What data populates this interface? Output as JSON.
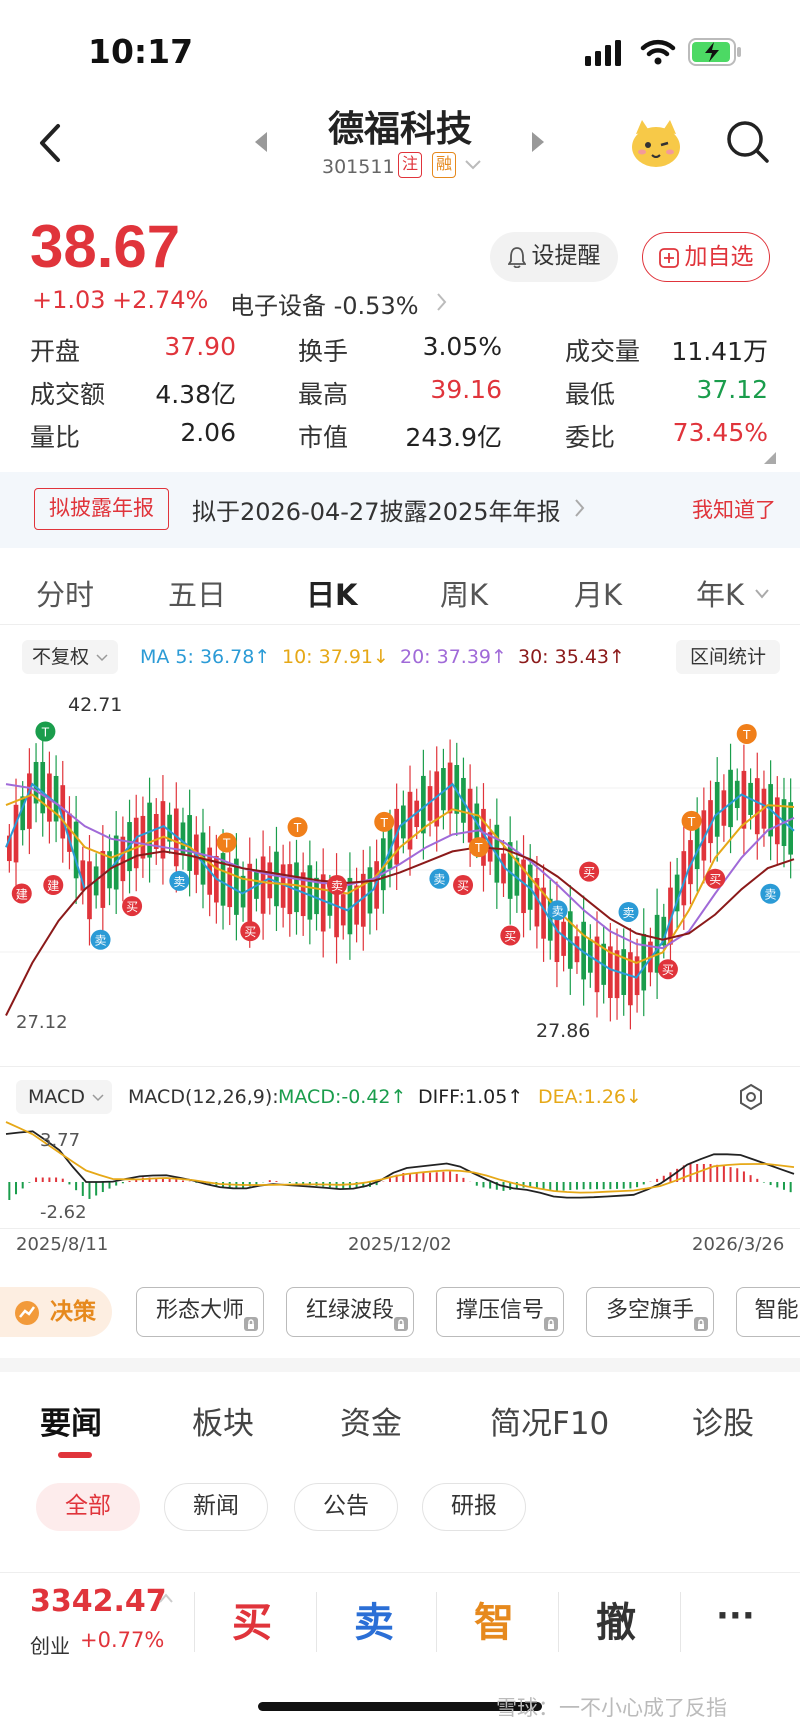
{
  "status_bar": {
    "time": "10:17"
  },
  "header": {
    "title": "德福科技",
    "code": "301511",
    "tag1": "注",
    "tag2": "融"
  },
  "quote": {
    "price": "38.67",
    "change": "+1.03",
    "change_pct": "+2.74%",
    "sector": "电子设备 -0.53%",
    "remind_label": "设提醒",
    "add_label": "加自选"
  },
  "stats": [
    {
      "label": "开盘",
      "value": "37.90",
      "color": "#e0343b"
    },
    {
      "label": "换手",
      "value": "3.05%",
      "color": "#222"
    },
    {
      "label": "成交量",
      "value": "11.41万",
      "color": "#222"
    },
    {
      "label": "成交额",
      "value": "4.38亿",
      "color": "#222"
    },
    {
      "label": "最高",
      "value": "39.16",
      "color": "#e0343b"
    },
    {
      "label": "最低",
      "value": "37.12",
      "color": "#1a9d4c"
    },
    {
      "label": "量比",
      "value": "2.06",
      "color": "#222"
    },
    {
      "label": "市值",
      "value": "243.9亿",
      "color": "#222"
    },
    {
      "label": "委比",
      "value": "73.45%",
      "color": "#e0343b"
    }
  ],
  "notice": {
    "badge": "拟披露年报",
    "text": "拟于2026-04-27披露2025年年报",
    "action": "我知道了"
  },
  "period_tabs": [
    "分时",
    "五日",
    "日K",
    "周K",
    "月K",
    "年K"
  ],
  "active_tab": "日K",
  "chart_controls": {
    "adjust": "不复权",
    "range_stats": "区间统计"
  },
  "ma_legend": {
    "ma5": "MA 5: 36.78↑",
    "ma10": "10: 37.91↓",
    "ma20": "20: 37.39↑",
    "ma30": "30: 35.43↑"
  },
  "colors": {
    "up": "#e0343b",
    "down": "#1a9d4c",
    "ma5": "#2b9bd6",
    "ma10": "#e6a817",
    "ma20": "#a06ad8",
    "ma30": "#8b1a1a",
    "accent": "#e0343b"
  },
  "chart_data": {
    "type": "line",
    "title": "",
    "ylim": [
      27.12,
      42.71
    ],
    "high_label": "42.71",
    "low_label": "27.86",
    "axis_min_label": "27.12",
    "x_labels": [
      "2025/8/11",
      "2025/12/02",
      "2026/3/26"
    ],
    "series": [
      {
        "name": "MA 5",
        "values": [
          36,
          39,
          38,
          34,
          35,
          36.5,
          37,
          36,
          34.5,
          33.8,
          34.5,
          34,
          33.5,
          33,
          34,
          37,
          38,
          39,
          37,
          35,
          34,
          32,
          31,
          30.2,
          29.8,
          31.5,
          35,
          37.5,
          38.5,
          37.9,
          36.78
        ]
      },
      {
        "name": "10",
        "values": [
          38,
          38.5,
          37.5,
          36,
          35.5,
          36,
          36.5,
          36,
          35,
          34.5,
          34.3,
          34.2,
          34,
          33.8,
          34.5,
          36,
          37,
          37.8,
          37.5,
          36,
          34.5,
          33,
          31.8,
          31,
          30.5,
          31,
          33,
          35.5,
          37,
          38,
          37.91
        ]
      },
      {
        "name": "20",
        "values": [
          39,
          38.8,
          38,
          37,
          36.4,
          36.2,
          36,
          35.8,
          35.5,
          35,
          34.7,
          34.5,
          34.3,
          34.2,
          34.5,
          35.2,
          36,
          36.6,
          36.8,
          36.2,
          35.3,
          34.2,
          33,
          32,
          31.4,
          31.2,
          32,
          33.8,
          35.5,
          36.8,
          37.39
        ]
      },
      {
        "name": "30",
        "values": [
          28,
          30.5,
          32.5,
          34,
          35,
          35.6,
          35.8,
          35.6,
          35.3,
          35,
          34.8,
          34.6,
          34.4,
          34.3,
          34.4,
          34.8,
          35.3,
          35.8,
          36,
          35.9,
          35.4,
          34.6,
          33.6,
          32.6,
          31.9,
          31.6,
          31.9,
          32.8,
          34,
          35,
          35.43
        ]
      }
    ]
  },
  "macd": {
    "label": "MACD",
    "params": "MACD(12,26,9):",
    "macd": "MACD:-0.42↑",
    "diff": "DIFF:1.05↑",
    "dea": "DEA:1.26↓",
    "high": "3.77",
    "low": "-2.62"
  },
  "tools": {
    "decision": "决策",
    "items": [
      "形态大师",
      "红绿波段",
      "撑压信号",
      "多空旗手",
      "智能"
    ]
  },
  "nav_tabs": [
    "要闻",
    "板块",
    "资金",
    "简况F10",
    "诊股"
  ],
  "chips": [
    "全部",
    "新闻",
    "公告",
    "研报"
  ],
  "bottom": {
    "index_value": "3342.47",
    "index_name": "创业",
    "index_change": "+0.77%",
    "buy": "买",
    "sell": "卖",
    "smart": "智",
    "cancel": "撤",
    "more": "···",
    "watermark": "雪球：一不小心成了反指"
  }
}
